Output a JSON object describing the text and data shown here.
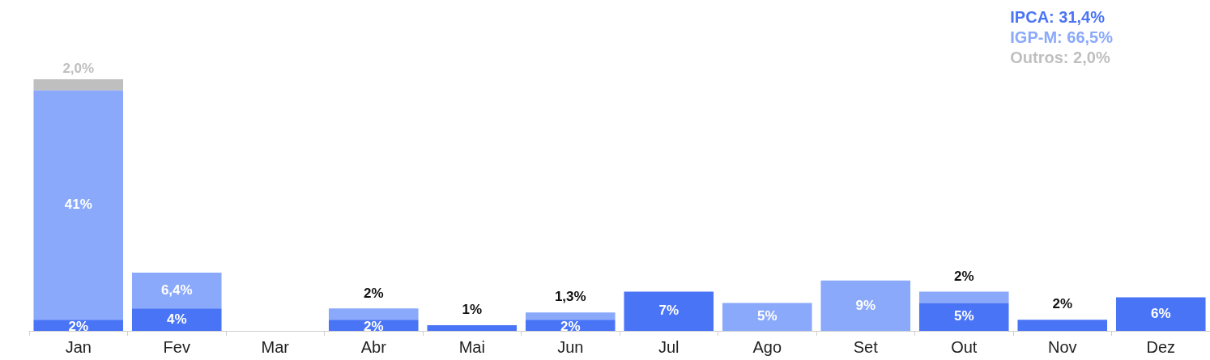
{
  "chart_data": {
    "type": "bar",
    "stacked": true,
    "legend": "top right",
    "categories": [
      "Jan",
      "Fev",
      "Mar",
      "Abr",
      "Mai",
      "Jun",
      "Jul",
      "Ago",
      "Set",
      "Out",
      "Nov",
      "Dez"
    ],
    "series": [
      {
        "name": "IPCA: 31,4%",
        "color": "#4a74f6",
        "values": [
          2,
          4,
          null,
          2,
          1,
          2,
          7,
          null,
          null,
          5,
          2,
          6
        ],
        "value_labels": [
          "2%",
          "4%",
          null,
          "2%",
          "1%",
          "2%",
          "7%",
          null,
          null,
          "5%",
          "2%",
          "6%"
        ]
      },
      {
        "name": "IGP-M: 66,5%",
        "color": "#8aa9fb",
        "values": [
          41,
          6.4,
          null,
          2,
          null,
          1.3,
          null,
          5,
          9,
          2,
          null,
          null
        ],
        "value_labels": [
          "41%",
          "6,4%",
          null,
          "2%",
          null,
          "1,3%",
          null,
          "5%",
          "9%",
          "2%",
          null,
          null
        ]
      },
      {
        "name": "Outros: 2,0%",
        "color": "#bfbfbf",
        "values": [
          2,
          null,
          null,
          null,
          null,
          null,
          null,
          null,
          null,
          null,
          null,
          null
        ],
        "value_labels": [
          "2,0%",
          null,
          null,
          null,
          null,
          null,
          null,
          null,
          null,
          null,
          null,
          null
        ]
      }
    ]
  }
}
